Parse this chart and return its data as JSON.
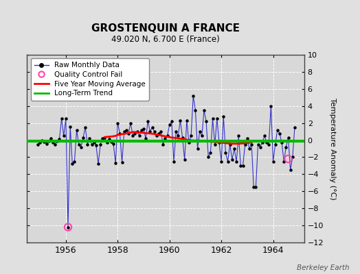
{
  "title": "GROSTENQUIN A FRANCE",
  "subtitle": "49.020 N, 6.700 E (France)",
  "ylabel": "Temperature Anomaly (°C)",
  "watermark": "Berkeley Earth",
  "ylim": [
    -12,
    10
  ],
  "yticks": [
    -12,
    -10,
    -8,
    -6,
    -4,
    -2,
    0,
    2,
    4,
    6,
    8,
    10
  ],
  "xlim": [
    1954.5,
    1965.2
  ],
  "xticks": [
    1956,
    1958,
    1960,
    1962,
    1964
  ],
  "fig_bg_color": "#e0e0e0",
  "plot_bg_color": "#d8d8d8",
  "line_color": "#3333cc",
  "marker_color": "#000000",
  "ma_color": "#ff0000",
  "trend_color": "#00bb00",
  "qc_fail_color": "#ff44aa",
  "raw_data": {
    "times": [
      1954.917,
      1955.0,
      1955.083,
      1955.167,
      1955.25,
      1955.333,
      1955.417,
      1955.5,
      1955.583,
      1955.667,
      1955.75,
      1955.833,
      1955.917,
      1956.0,
      1956.083,
      1956.167,
      1956.25,
      1956.333,
      1956.417,
      1956.5,
      1956.583,
      1956.667,
      1956.75,
      1956.833,
      1956.917,
      1957.0,
      1957.083,
      1957.167,
      1957.25,
      1957.333,
      1957.417,
      1957.5,
      1957.583,
      1957.667,
      1957.75,
      1957.833,
      1957.917,
      1958.0,
      1958.083,
      1958.167,
      1958.25,
      1958.333,
      1958.417,
      1958.5,
      1958.583,
      1958.667,
      1958.75,
      1958.833,
      1958.917,
      1959.0,
      1959.083,
      1959.167,
      1959.25,
      1959.333,
      1959.417,
      1959.5,
      1959.583,
      1959.667,
      1959.75,
      1959.833,
      1959.917,
      1960.0,
      1960.083,
      1960.167,
      1960.25,
      1960.333,
      1960.417,
      1960.5,
      1960.583,
      1960.667,
      1960.75,
      1960.833,
      1960.917,
      1961.0,
      1961.083,
      1961.167,
      1961.25,
      1961.333,
      1961.417,
      1961.5,
      1961.583,
      1961.667,
      1961.75,
      1961.833,
      1961.917,
      1962.0,
      1962.083,
      1962.167,
      1962.25,
      1962.333,
      1962.417,
      1962.5,
      1962.583,
      1962.667,
      1962.75,
      1962.833,
      1962.917,
      1963.0,
      1963.083,
      1963.167,
      1963.25,
      1963.333,
      1963.417,
      1963.5,
      1963.583,
      1963.667,
      1963.75,
      1963.833,
      1963.917,
      1964.0,
      1964.083,
      1964.167,
      1964.25,
      1964.333,
      1964.417,
      1964.5,
      1964.583,
      1964.667,
      1964.75,
      1964.833
    ],
    "values": [
      -0.5,
      -0.3,
      0.0,
      -0.2,
      -0.4,
      -0.1,
      0.2,
      -0.3,
      -0.5,
      -0.1,
      0.1,
      2.5,
      0.5,
      2.5,
      -10.2,
      1.6,
      -2.8,
      -2.5,
      1.2,
      -0.5,
      -0.8,
      0.3,
      1.5,
      -0.5,
      0.2,
      -0.5,
      -0.3,
      -0.6,
      -2.8,
      -0.5,
      0.2,
      0.3,
      -0.3,
      0.1,
      -0.2,
      -0.4,
      -2.7,
      2.0,
      0.8,
      -2.6,
      1.0,
      1.2,
      0.8,
      2.0,
      0.5,
      0.8,
      1.0,
      0.5,
      1.2,
      1.3,
      0.2,
      2.2,
      1.0,
      1.5,
      1.0,
      0.5,
      0.8,
      1.0,
      -0.5,
      0.2,
      0.5,
      1.8,
      2.2,
      -2.5,
      1.0,
      0.5,
      2.3,
      0.3,
      -2.3,
      2.3,
      -0.3,
      0.5,
      5.2,
      3.5,
      -1.0,
      1.0,
      0.5,
      3.5,
      2.2,
      -2.0,
      -1.5,
      2.5,
      -0.5,
      2.5,
      -0.3,
      -2.5,
      2.8,
      -1.5,
      -2.5,
      -0.5,
      -2.3,
      -1.0,
      -2.5,
      0.5,
      -3.0,
      -3.0,
      -0.5,
      0.2,
      -1.0,
      -0.5,
      -5.5,
      -5.5,
      -0.5,
      -0.8,
      -0.3,
      0.5,
      -0.3,
      -0.5,
      4.0,
      -2.5,
      -0.5,
      1.2,
      0.8,
      -0.3,
      -2.5,
      -0.8,
      0.3,
      -3.5,
      -2.0,
      1.5
    ]
  },
  "qc_fail_points": [
    [
      1956.083,
      -10.2
    ],
    [
      1964.583,
      -2.2
    ]
  ],
  "moving_avg": {
    "times": [
      1957.5,
      1957.583,
      1957.667,
      1957.75,
      1957.833,
      1957.917,
      1958.0,
      1958.083,
      1958.167,
      1958.25,
      1958.333,
      1958.417,
      1958.5,
      1958.583,
      1958.667,
      1958.75,
      1958.833,
      1958.917,
      1959.0,
      1959.083,
      1959.167,
      1959.25,
      1959.333,
      1959.417,
      1959.5,
      1959.583,
      1959.667,
      1959.75,
      1959.833,
      1959.917,
      1960.0,
      1960.083,
      1960.167,
      1960.25,
      1960.333,
      1960.417,
      1960.5,
      1960.583,
      1960.667,
      1960.75,
      1960.833,
      1960.917,
      1961.0,
      1961.083,
      1961.167,
      1961.25,
      1961.333,
      1961.417,
      1961.5,
      1961.583,
      1961.667,
      1961.75,
      1961.833,
      1961.917,
      1962.0,
      1962.083,
      1962.167,
      1962.25,
      1962.333,
      1962.417,
      1962.5,
      1962.583,
      1962.667,
      1962.75,
      1962.833,
      1962.917,
      1963.0,
      1963.083,
      1963.167
    ],
    "values": [
      0.35,
      0.38,
      0.4,
      0.42,
      0.45,
      0.5,
      0.6,
      0.65,
      0.7,
      0.73,
      0.78,
      0.82,
      0.9,
      0.95,
      0.95,
      0.92,
      0.9,
      0.88,
      0.85,
      0.82,
      0.8,
      0.78,
      0.75,
      0.72,
      0.65,
      0.6,
      0.55,
      0.5,
      0.45,
      0.4,
      0.35,
      0.3,
      0.28,
      0.25,
      0.2,
      0.18,
      0.15,
      0.1,
      0.05,
      0.02,
      -0.02,
      -0.05,
      -0.05,
      -0.05,
      -0.05,
      -0.08,
      -0.1,
      -0.12,
      -0.15,
      -0.18,
      -0.2,
      -0.22,
      -0.25,
      -0.28,
      -0.3,
      -0.32,
      -0.35,
      -0.38,
      -0.4,
      -0.42,
      -0.42,
      -0.42,
      -0.42,
      -0.4,
      -0.38,
      -0.35,
      -0.32,
      -0.3,
      -0.28
    ]
  },
  "trend_y": [
    -0.15,
    -0.15
  ]
}
